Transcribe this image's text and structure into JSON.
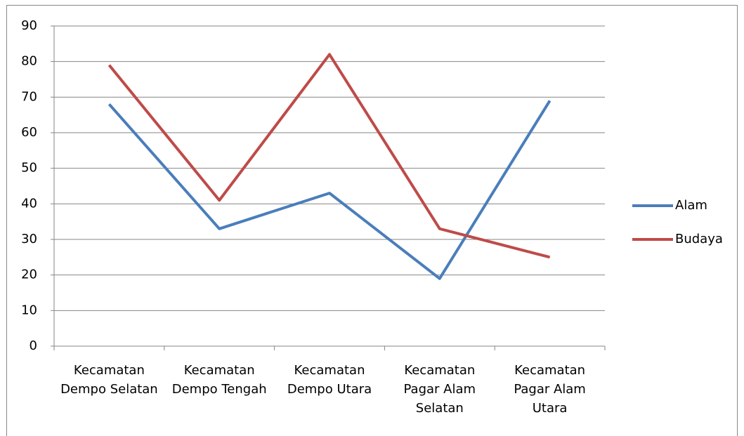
{
  "chart_data": {
    "type": "line",
    "categories": [
      "Kecamatan Dempo Selatan",
      "Kecamatan Dempo Tengah",
      "Kecamatan Dempo Utara",
      "Kecamatan Pagar Alam Selatan",
      "Kecamatan Pagar Alam Utara"
    ],
    "series": [
      {
        "name": "Alam",
        "color": "#4a7ebb",
        "values": [
          68,
          33,
          43,
          19,
          69
        ]
      },
      {
        "name": "Budaya",
        "color": "#be4b48",
        "values": [
          79,
          41,
          82,
          33,
          25
        ]
      }
    ],
    "ylim": [
      0,
      90
    ],
    "yticks": [
      0,
      10,
      20,
      30,
      40,
      50,
      60,
      70,
      80,
      90
    ],
    "grid": true,
    "legend": "right"
  }
}
